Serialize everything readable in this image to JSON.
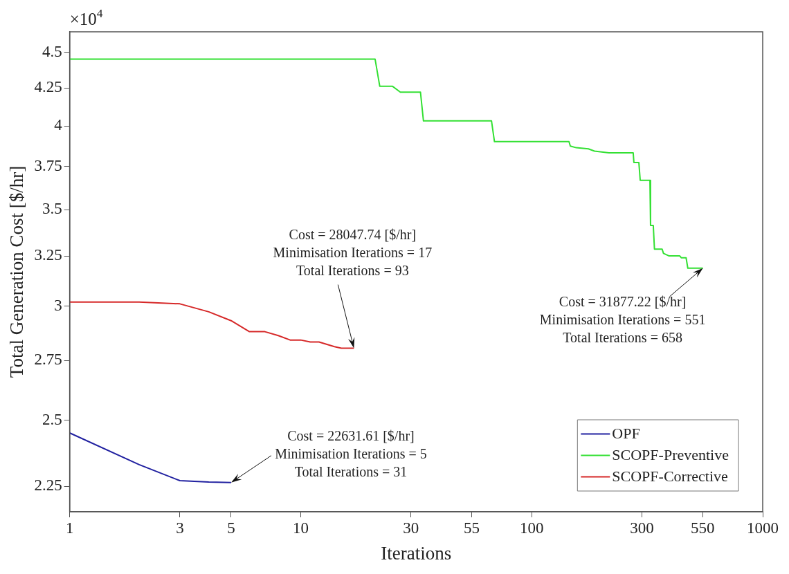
{
  "chart_data": {
    "type": "line",
    "xlabel": "Iterations",
    "ylabel": "Total Generation Cost [$/hr]",
    "log": "xy",
    "grid": false,
    "legend": "bottom right",
    "xlim": [
      1,
      1000
    ],
    "xticks": [
      1,
      3,
      5,
      10,
      30,
      55,
      100,
      300,
      550,
      1000
    ],
    "ylim": [
      2.16,
      4.65
    ],
    "yticks": [
      2.25,
      2.5,
      2.75,
      3,
      3.25,
      3.5,
      3.75,
      4,
      4.25,
      4.5
    ],
    "series": [
      {
        "name": "OPF",
        "color": "#2020a0",
        "x": [
          1,
          2,
          3,
          4,
          5
        ],
        "values": [
          2.45,
          2.329,
          2.27,
          2.265,
          2.263161
        ]
      },
      {
        "name": "SCOPF-Preventive",
        "color": "#33e033",
        "x": [
          1,
          21,
          22,
          25,
          27,
          33,
          34,
          67,
          69,
          145,
          147,
          156,
          176,
          187,
          216,
          275,
          277,
          291,
          295,
          325,
          327,
          336,
          340,
          367,
          372,
          392,
          437,
          444,
          466,
          474,
          551
        ],
        "values": [
          4.451,
          4.451,
          4.262,
          4.262,
          4.223,
          4.223,
          4.033,
          4.033,
          3.902,
          3.902,
          3.874,
          3.864,
          3.857,
          3.843,
          3.833,
          3.833,
          3.774,
          3.774,
          3.668,
          3.668,
          3.413,
          3.413,
          3.286,
          3.286,
          3.264,
          3.251,
          3.251,
          3.241,
          3.241,
          3.187722,
          3.187722
        ]
      },
      {
        "name": "SCOPF-Corrective",
        "color": "#d62828",
        "x": [
          1,
          2,
          3,
          4,
          5,
          6,
          7,
          8,
          9,
          10,
          11,
          12,
          13,
          14,
          15,
          16,
          17
        ],
        "values": [
          3.02,
          3.02,
          3.011,
          2.973,
          2.931,
          2.88,
          2.88,
          2.862,
          2.842,
          2.842,
          2.833,
          2.833,
          2.822,
          2.812,
          2.805,
          2.8048,
          2.804774
        ]
      }
    ],
    "annotations": [
      "×10$^{4}$",
      {
        "text": "Cost = 22631.61 [$/hr]\nMinimisation Iterations = 5\nTotal Iterations = 31",
        "x": 5,
        "y": 2.263161
      },
      {
        "text": "Cost = 28047.74 [$/hr]\nMinimisation Iterations = 17\nTotal Iterations = 93",
        "x": 17,
        "y": 2.804774
      },
      {
        "text": "Cost = 31877.22 [$/hr]\nMinimisation Iterations = 551\nTotal Iterations = 658",
        "x": 551,
        "y": 3.187722
      }
    ]
  }
}
